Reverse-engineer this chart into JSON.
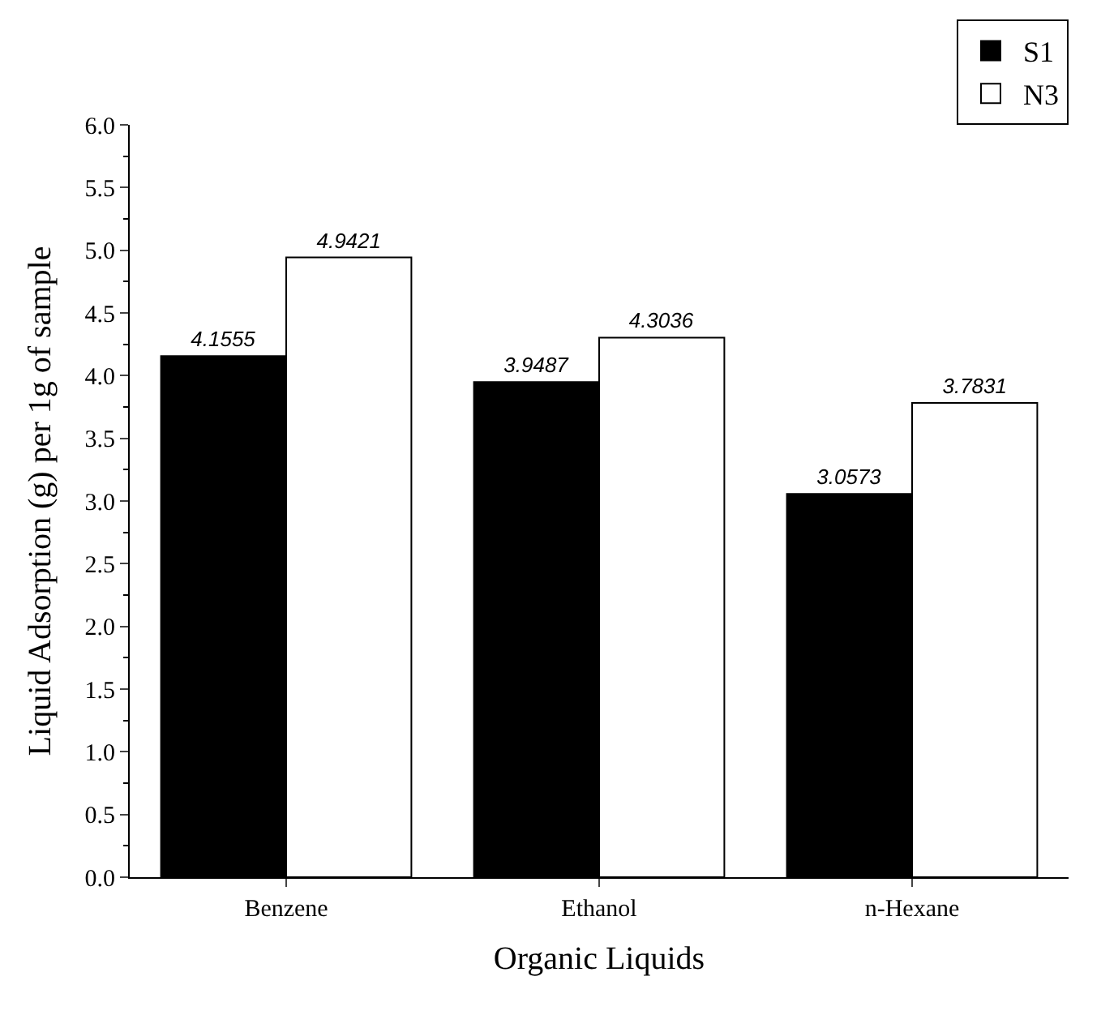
{
  "chart_data": {
    "type": "bar",
    "xlabel": "Organic Liquids",
    "ylabel": "Liquid Adsorption (g) per 1g of sample",
    "categories": [
      "Benzene",
      "Ethanol",
      "n-Hexane"
    ],
    "series": [
      {
        "name": "S1",
        "color": "#000000",
        "values": [
          4.1555,
          3.9487,
          3.0573
        ]
      },
      {
        "name": "N3",
        "color": "#ffffff",
        "values": [
          4.9421,
          4.3036,
          3.7831
        ]
      }
    ],
    "ylim": [
      0,
      6
    ],
    "yticks": [
      "0.0",
      "0.5",
      "1.0",
      "1.5",
      "2.0",
      "2.5",
      "3.0",
      "3.5",
      "4.0",
      "4.5",
      "5.0",
      "5.5",
      "6.0"
    ],
    "data_labels": true,
    "legend": "top right"
  }
}
